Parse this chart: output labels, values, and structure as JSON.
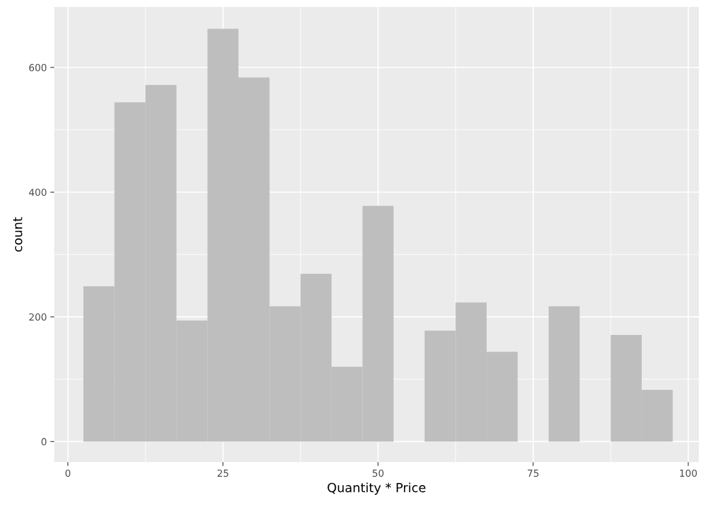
{
  "chart_data": {
    "type": "histogram",
    "xlabel": "Quantity * Price",
    "ylabel": "count",
    "bins": [
      2.5,
      7.5,
      12.5,
      17.5,
      22.5,
      27.5,
      32.5,
      37.5,
      42.5,
      47.5,
      52.5,
      57.5,
      62.5,
      67.5,
      72.5,
      77.5,
      82.5,
      87.5,
      92.5,
      97.5
    ],
    "values": [
      249,
      544,
      572,
      194,
      662,
      584,
      217,
      269,
      120,
      378,
      0,
      178,
      223,
      144,
      0,
      217,
      0,
      171,
      83
    ],
    "color": "#bebebe",
    "xlim": [
      -2.2,
      101.7
    ],
    "ylim": [
      -33,
      697
    ],
    "xticks": [
      0,
      25,
      50,
      75,
      100
    ],
    "yticks": [
      0,
      200,
      400,
      600
    ],
    "grid": true
  }
}
